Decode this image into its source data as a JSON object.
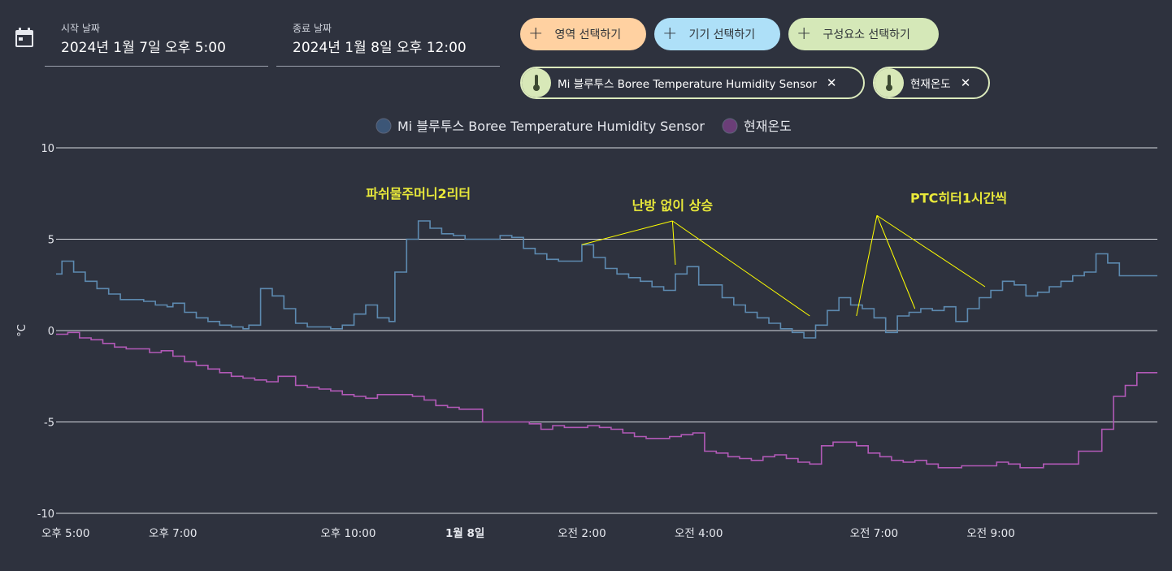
{
  "date_range": {
    "start_label": "시작 날짜",
    "start_value": "2024년 1월 7일 오후 5:00",
    "end_label": "종료 날짜",
    "end_value": "2024년 1월 8일 오후 12:00"
  },
  "target_buttons": [
    {
      "label": "영역 선택하기",
      "color": "#ffd1a1"
    },
    {
      "label": "기기 선택하기",
      "color": "#aee0f8"
    },
    {
      "label": "구성요소 선택하기",
      "color": "#d5e8b8"
    }
  ],
  "chips": [
    {
      "label": "Mi 블루투스 Boree Temperature Humidity Sensor",
      "icon": "thermometer-icon"
    },
    {
      "label": "현재온도",
      "icon": "thermometer-icon"
    }
  ],
  "chart_data": {
    "type": "line",
    "step": true,
    "ylabel": "°C",
    "ylim": [
      -10,
      10
    ],
    "yticks": [
      "10",
      "5",
      "0",
      "-5",
      "-10"
    ],
    "xlim": [
      17.0,
      35.85
    ],
    "xticks": [
      {
        "x": 17,
        "label": "오후 5:00"
      },
      {
        "x": 19,
        "label": "오후 7:00"
      },
      {
        "x": 22,
        "label": "오후 10:00"
      },
      {
        "x": 24,
        "label": "1월 8일",
        "bold": true
      },
      {
        "x": 26,
        "label": "오전 2:00"
      },
      {
        "x": 28,
        "label": "오전 4:00"
      },
      {
        "x": 31,
        "label": "오전 7:00"
      },
      {
        "x": 33,
        "label": "오전 9:00"
      }
    ],
    "legend": "top-center",
    "series": [
      {
        "name": "Mi 블루투스 Boree Temperature Humidity Sensor",
        "color": "#5d8ab0",
        "marker_color": "#3c5677",
        "points": [
          [
            17.0,
            3.1
          ],
          [
            17.1,
            3.8
          ],
          [
            17.3,
            3.2
          ],
          [
            17.5,
            2.7
          ],
          [
            17.7,
            2.3
          ],
          [
            17.9,
            2.0
          ],
          [
            18.1,
            1.7
          ],
          [
            18.3,
            1.7
          ],
          [
            18.5,
            1.6
          ],
          [
            18.7,
            1.4
          ],
          [
            18.9,
            1.3
          ],
          [
            19.0,
            1.5
          ],
          [
            19.2,
            1.0
          ],
          [
            19.4,
            0.7
          ],
          [
            19.6,
            0.5
          ],
          [
            19.8,
            0.3
          ],
          [
            20.0,
            0.2
          ],
          [
            20.2,
            0.1
          ],
          [
            20.3,
            0.3
          ],
          [
            20.5,
            2.3
          ],
          [
            20.7,
            1.9
          ],
          [
            20.9,
            1.2
          ],
          [
            21.1,
            0.4
          ],
          [
            21.3,
            0.2
          ],
          [
            21.5,
            0.2
          ],
          [
            21.7,
            0.1
          ],
          [
            21.9,
            0.3
          ],
          [
            22.1,
            0.9
          ],
          [
            22.3,
            1.4
          ],
          [
            22.5,
            0.7
          ],
          [
            22.7,
            0.5
          ],
          [
            22.8,
            3.2
          ],
          [
            23.0,
            5.0
          ],
          [
            23.2,
            6.0
          ],
          [
            23.4,
            5.6
          ],
          [
            23.6,
            5.3
          ],
          [
            23.8,
            5.2
          ],
          [
            24.0,
            5.0
          ],
          [
            24.2,
            5.0
          ],
          [
            24.4,
            5.0
          ],
          [
            24.6,
            5.2
          ],
          [
            24.8,
            5.1
          ],
          [
            25.0,
            4.5
          ],
          [
            25.2,
            4.2
          ],
          [
            25.4,
            3.9
          ],
          [
            25.6,
            3.8
          ],
          [
            25.8,
            3.8
          ],
          [
            26.0,
            4.7
          ],
          [
            26.2,
            4.0
          ],
          [
            26.4,
            3.4
          ],
          [
            26.6,
            3.1
          ],
          [
            26.8,
            2.9
          ],
          [
            27.0,
            2.7
          ],
          [
            27.2,
            2.4
          ],
          [
            27.4,
            2.2
          ],
          [
            27.6,
            3.1
          ],
          [
            27.8,
            3.5
          ],
          [
            28.0,
            2.5
          ],
          [
            28.2,
            2.5
          ],
          [
            28.4,
            1.8
          ],
          [
            28.6,
            1.4
          ],
          [
            28.8,
            1.0
          ],
          [
            29.0,
            0.7
          ],
          [
            29.2,
            0.4
          ],
          [
            29.4,
            0.1
          ],
          [
            29.6,
            -0.1
          ],
          [
            29.8,
            -0.4
          ],
          [
            30.0,
            0.3
          ],
          [
            30.2,
            1.1
          ],
          [
            30.4,
            1.8
          ],
          [
            30.6,
            1.4
          ],
          [
            30.8,
            1.2
          ],
          [
            31.0,
            0.7
          ],
          [
            31.2,
            -0.1
          ],
          [
            31.4,
            0.8
          ],
          [
            31.6,
            1.0
          ],
          [
            31.8,
            1.2
          ],
          [
            32.0,
            1.1
          ],
          [
            32.2,
            1.3
          ],
          [
            32.4,
            0.5
          ],
          [
            32.6,
            1.2
          ],
          [
            32.8,
            1.8
          ],
          [
            33.0,
            2.2
          ],
          [
            33.2,
            2.7
          ],
          [
            33.4,
            2.5
          ],
          [
            33.6,
            1.9
          ],
          [
            33.8,
            2.1
          ],
          [
            34.0,
            2.4
          ],
          [
            34.2,
            2.7
          ],
          [
            34.4,
            3.0
          ],
          [
            34.6,
            3.2
          ],
          [
            34.8,
            4.2
          ],
          [
            35.0,
            3.7
          ],
          [
            35.2,
            3.0
          ],
          [
            35.85,
            3.0
          ]
        ]
      },
      {
        "name": "현재온도",
        "color": "#b259b7",
        "marker_color": "#6b3e78",
        "points": [
          [
            17.0,
            -0.2
          ],
          [
            17.2,
            -0.1
          ],
          [
            17.4,
            -0.4
          ],
          [
            17.6,
            -0.5
          ],
          [
            17.8,
            -0.7
          ],
          [
            18.0,
            -0.9
          ],
          [
            18.2,
            -1.0
          ],
          [
            18.4,
            -1.0
          ],
          [
            18.6,
            -1.2
          ],
          [
            18.8,
            -1.1
          ],
          [
            19.0,
            -1.4
          ],
          [
            19.2,
            -1.7
          ],
          [
            19.4,
            -1.9
          ],
          [
            19.6,
            -2.1
          ],
          [
            19.8,
            -2.3
          ],
          [
            20.0,
            -2.5
          ],
          [
            20.2,
            -2.6
          ],
          [
            20.4,
            -2.7
          ],
          [
            20.6,
            -2.8
          ],
          [
            20.8,
            -2.5
          ],
          [
            21.1,
            -3.0
          ],
          [
            21.3,
            -3.1
          ],
          [
            21.5,
            -3.2
          ],
          [
            21.7,
            -3.3
          ],
          [
            21.9,
            -3.5
          ],
          [
            22.1,
            -3.6
          ],
          [
            22.3,
            -3.7
          ],
          [
            22.5,
            -3.5
          ],
          [
            22.7,
            -3.5
          ],
          [
            22.9,
            -3.5
          ],
          [
            23.1,
            -3.6
          ],
          [
            23.3,
            -3.8
          ],
          [
            23.5,
            -4.1
          ],
          [
            23.7,
            -4.2
          ],
          [
            23.9,
            -4.3
          ],
          [
            24.1,
            -4.3
          ],
          [
            24.3,
            -5.0
          ],
          [
            24.5,
            -5.0
          ],
          [
            24.7,
            -5.0
          ],
          [
            24.9,
            -5.0
          ],
          [
            25.1,
            -5.1
          ],
          [
            25.3,
            -5.4
          ],
          [
            25.5,
            -5.2
          ],
          [
            25.7,
            -5.3
          ],
          [
            25.9,
            -5.3
          ],
          [
            26.1,
            -5.2
          ],
          [
            26.3,
            -5.3
          ],
          [
            26.5,
            -5.4
          ],
          [
            26.7,
            -5.6
          ],
          [
            26.9,
            -5.8
          ],
          [
            27.1,
            -5.9
          ],
          [
            27.3,
            -5.9
          ],
          [
            27.5,
            -5.8
          ],
          [
            27.7,
            -5.7
          ],
          [
            27.9,
            -5.6
          ],
          [
            28.1,
            -6.6
          ],
          [
            28.3,
            -6.7
          ],
          [
            28.5,
            -6.9
          ],
          [
            28.7,
            -7.0
          ],
          [
            28.9,
            -7.1
          ],
          [
            29.1,
            -6.9
          ],
          [
            29.3,
            -6.8
          ],
          [
            29.5,
            -7.0
          ],
          [
            29.7,
            -7.2
          ],
          [
            29.9,
            -7.3
          ],
          [
            30.1,
            -6.3
          ],
          [
            30.3,
            -6.1
          ],
          [
            30.5,
            -6.1
          ],
          [
            30.7,
            -6.3
          ],
          [
            30.9,
            -6.7
          ],
          [
            31.1,
            -6.9
          ],
          [
            31.3,
            -7.1
          ],
          [
            31.5,
            -7.2
          ],
          [
            31.7,
            -7.1
          ],
          [
            31.9,
            -7.3
          ],
          [
            32.1,
            -7.5
          ],
          [
            32.3,
            -7.5
          ],
          [
            32.5,
            -7.4
          ],
          [
            32.7,
            -7.4
          ],
          [
            32.9,
            -7.4
          ],
          [
            33.1,
            -7.2
          ],
          [
            33.3,
            -7.3
          ],
          [
            33.5,
            -7.5
          ],
          [
            33.7,
            -7.5
          ],
          [
            33.9,
            -7.3
          ],
          [
            34.1,
            -7.3
          ],
          [
            34.3,
            -7.3
          ],
          [
            34.5,
            -6.6
          ],
          [
            34.7,
            -6.6
          ],
          [
            34.9,
            -5.4
          ],
          [
            35.1,
            -3.6
          ],
          [
            35.3,
            -3.0
          ],
          [
            35.5,
            -2.3
          ],
          [
            35.85,
            -2.3
          ]
        ]
      }
    ],
    "annotations": [
      {
        "text": "파쉬물주머니2리터",
        "x": 23.2,
        "y": 7.25,
        "color": "#e9e93a"
      },
      {
        "text": "난방  없이  상승",
        "x": 27.55,
        "y": 6.6,
        "color": "#e9e93a"
      },
      {
        "text": "PTC히터1시간씩",
        "x": 32.45,
        "y": 7.0,
        "color": "#e9e93a"
      }
    ],
    "annotation_lines": [
      {
        "color": "#ffff00",
        "from": [
          27.55,
          6.0
        ],
        "to": [
          [
            26.0,
            4.7
          ],
          [
            27.6,
            3.6
          ],
          [
            29.9,
            0.8
          ]
        ]
      },
      {
        "color": "#ffff00",
        "from": [
          31.05,
          6.3
        ],
        "to": [
          [
            30.7,
            0.8
          ],
          [
            31.7,
            1.2
          ],
          [
            32.9,
            2.4
          ]
        ]
      }
    ]
  }
}
